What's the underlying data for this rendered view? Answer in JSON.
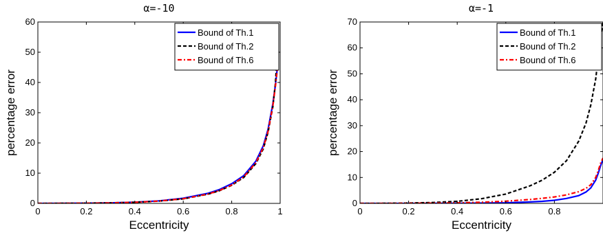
{
  "chart_data": [
    {
      "type": "line",
      "title": "α=-10",
      "xlabel": "Eccentricity",
      "ylabel": "percentage error",
      "xlim": [
        0,
        1
      ],
      "ylim": [
        0,
        60
      ],
      "xticks": [
        0,
        0.2,
        0.4,
        0.6,
        0.8,
        1
      ],
      "xtick_labels": [
        "0",
        "0.2",
        "0.4",
        "0.6",
        "0.8",
        "1"
      ],
      "yticks": [
        0,
        10,
        20,
        30,
        40,
        50,
        60
      ],
      "ytick_labels": [
        "0",
        "10",
        "20",
        "30",
        "40",
        "50",
        "60"
      ],
      "grid": false,
      "legend_position": "top-right",
      "x": [
        0,
        0.1,
        0.2,
        0.3,
        0.4,
        0.5,
        0.6,
        0.7,
        0.75,
        0.8,
        0.85,
        0.9,
        0.93,
        0.95,
        0.97,
        0.98,
        0.99
      ],
      "series": [
        {
          "name": "Bound of Th.1",
          "color": "#0000ff",
          "style": "solid",
          "values": [
            0,
            0.02,
            0.08,
            0.18,
            0.4,
            0.85,
            1.7,
            3.3,
            4.6,
            6.5,
            9.2,
            14.0,
            19.0,
            24.5,
            33.0,
            39.0,
            46.0
          ]
        },
        {
          "name": "Bound of Th.2",
          "color": "#000000",
          "style": "dashed",
          "values": [
            0,
            0.02,
            0.07,
            0.16,
            0.36,
            0.75,
            1.5,
            3.0,
            4.2,
            6.0,
            8.6,
            13.2,
            18.0,
            23.5,
            32.0,
            39.5,
            52.0
          ]
        },
        {
          "name": "Bound of Th.6",
          "color": "#ff0000",
          "style": "dashdot",
          "values": [
            0,
            0.02,
            0.07,
            0.16,
            0.37,
            0.78,
            1.55,
            3.05,
            4.3,
            6.1,
            8.8,
            13.5,
            18.4,
            23.8,
            32.3,
            38.5,
            45.5
          ]
        }
      ]
    },
    {
      "type": "line",
      "title": "α=-1",
      "xlabel": "Eccentricity",
      "ylabel": "percentage error",
      "xlim": [
        0,
        1
      ],
      "ylim": [
        0,
        70
      ],
      "xticks": [
        0,
        0.2,
        0.4,
        0.6,
        0.8
      ],
      "xtick_labels": [
        "0",
        "0.2",
        "0.4",
        "0.6",
        "0.8"
      ],
      "yticks": [
        0,
        10,
        20,
        30,
        40,
        50,
        60,
        70
      ],
      "ytick_labels": [
        "0",
        "10",
        "20",
        "30",
        "40",
        "50",
        "60",
        "70"
      ],
      "grid": false,
      "legend_position": "top-right",
      "x": [
        0,
        0.1,
        0.2,
        0.3,
        0.4,
        0.5,
        0.6,
        0.7,
        0.75,
        0.8,
        0.85,
        0.9,
        0.93,
        0.95,
        0.97,
        0.98,
        0.99,
        1.0
      ],
      "series": [
        {
          "name": "Bound of Th.1",
          "color": "#0000ff",
          "style": "solid",
          "values": [
            0,
            0,
            0.01,
            0.02,
            0.05,
            0.12,
            0.25,
            0.55,
            0.8,
            1.2,
            1.9,
            3.0,
            4.4,
            6.0,
            9.0,
            11.5,
            14.5,
            17.0
          ]
        },
        {
          "name": "Bound of Th.2",
          "color": "#000000",
          "style": "dashed",
          "values": [
            0,
            0.03,
            0.12,
            0.35,
            0.8,
            1.8,
            3.6,
            6.8,
            9.0,
            12.0,
            16.5,
            24.0,
            31.0,
            38.0,
            48.0,
            56.0,
            64.0,
            70.0
          ]
        },
        {
          "name": "Bound of Th.6",
          "color": "#ff0000",
          "style": "dashdot",
          "values": [
            0,
            0.01,
            0.04,
            0.1,
            0.22,
            0.45,
            0.85,
            1.5,
            1.95,
            2.5,
            3.3,
            4.5,
            5.8,
            7.2,
            10.0,
            12.5,
            15.5,
            17.5
          ]
        }
      ]
    }
  ]
}
